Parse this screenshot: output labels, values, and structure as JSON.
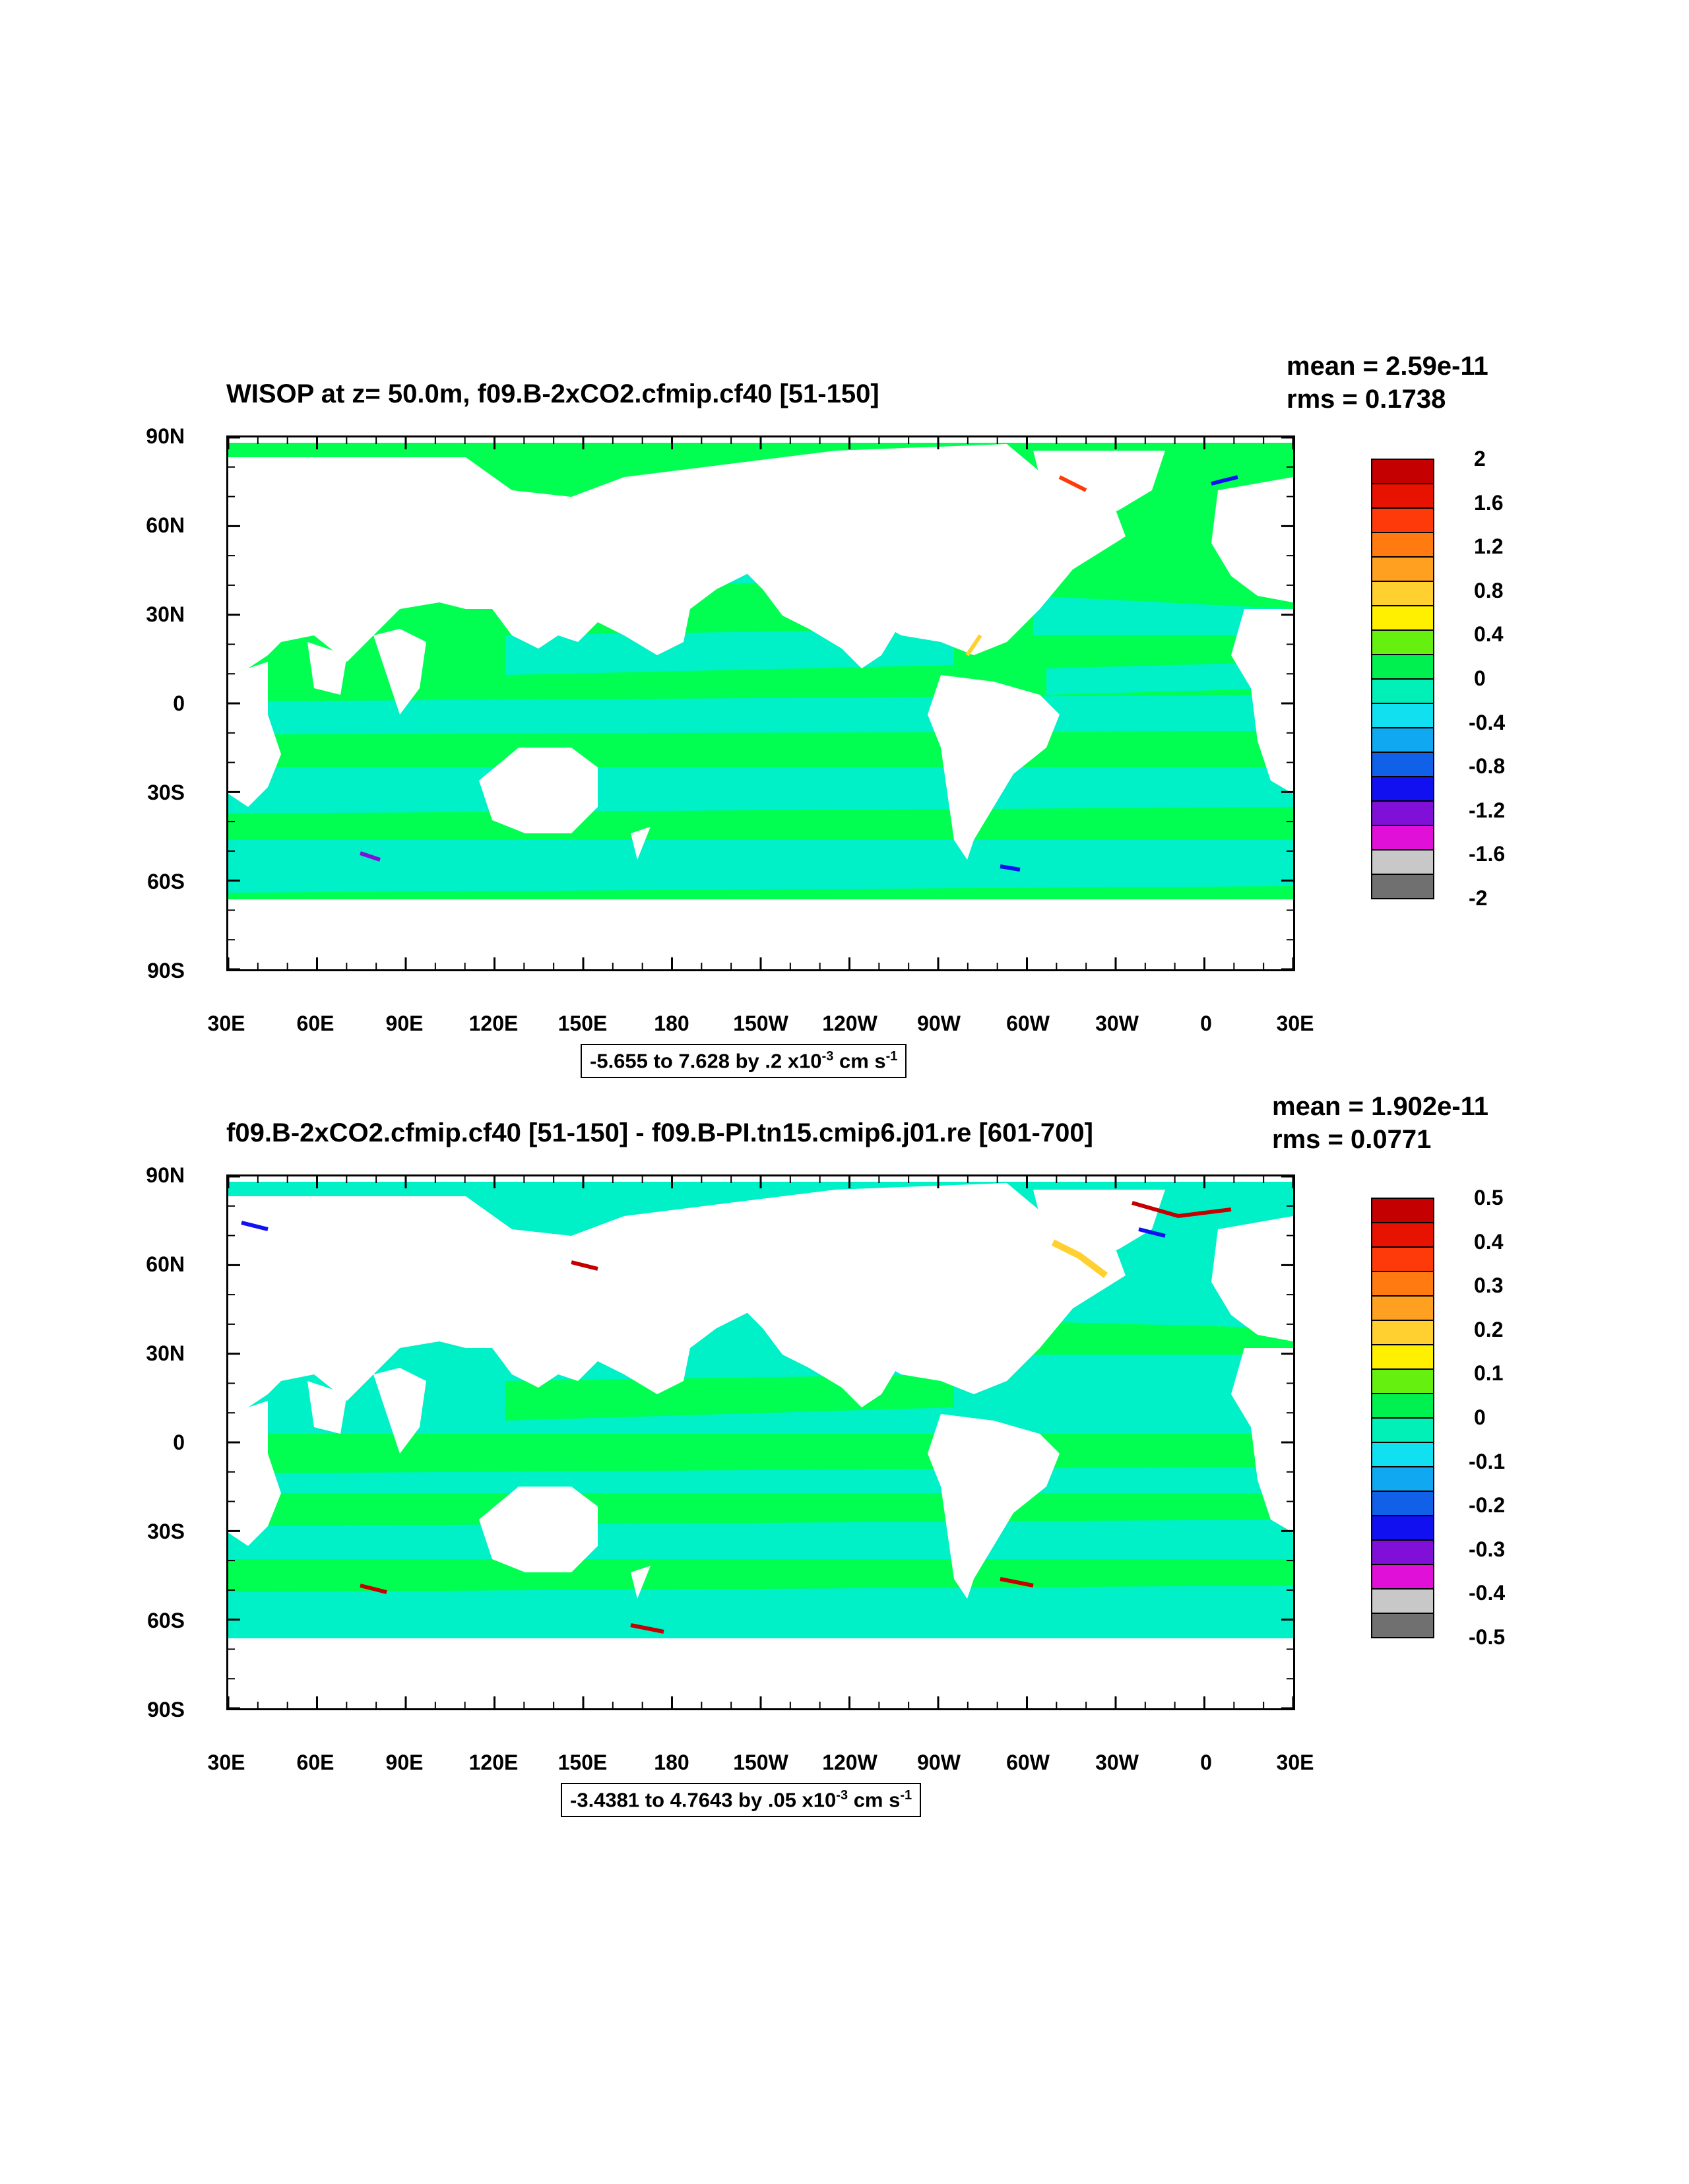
{
  "panels": [
    {
      "title": "WISOP at z=  50.0m, f09.B-2xCO2.cfmip.cf40 [51-150]",
      "mean": "mean = 2.59e-11",
      "rms": "rms = 0.1738",
      "info": {
        "range": "-5.655 to 7.628 by .2 x10",
        "exp": "-3",
        "unit": " cm s",
        "unit_exp": "-1"
      },
      "y_ticks": [
        "90N",
        "60N",
        "30N",
        "0",
        "30S",
        "60S",
        "90S"
      ],
      "x_ticks": [
        "30E",
        "60E",
        "90E",
        "120E",
        "150E",
        "180",
        "150W",
        "120W",
        "90W",
        "60W",
        "30W",
        "0",
        "30E"
      ],
      "colorbar": {
        "labels": [
          "2",
          "1.6",
          "1.2",
          "0.8",
          "0.4",
          "0",
          "-0.4",
          "-0.8",
          "-1.2",
          "-1.6",
          "-2"
        ],
        "colors": [
          "#c40000",
          "#e81200",
          "#ff3a0a",
          "#ff7a10",
          "#ffa020",
          "#ffd030",
          "#fff000",
          "#66f010",
          "#00f050",
          "#00f0b8",
          "#10e0f0",
          "#10a8f0",
          "#1060e8",
          "#1010f0",
          "#8010d8",
          "#e010d8",
          "#c8c8c8",
          "#707070"
        ]
      },
      "ocean_color": "#00ff50",
      "band_color": "#00f0c8"
    },
    {
      "title": "f09.B-2xCO2.cfmip.cf40 [51-150] - f09.B-PI.tn15.cmip6.j01.re [601-700]",
      "mean": "mean = 1.902e-11",
      "rms": "rms = 0.0771",
      "info": {
        "range": "-3.4381 to 4.7643 by .05 x10",
        "exp": "-3",
        "unit": " cm s",
        "unit_exp": "-1"
      },
      "y_ticks": [
        "90N",
        "60N",
        "30N",
        "0",
        "30S",
        "60S",
        "90S"
      ],
      "x_ticks": [
        "30E",
        "60E",
        "90E",
        "120E",
        "150E",
        "180",
        "150W",
        "120W",
        "90W",
        "60W",
        "30W",
        "0",
        "30E"
      ],
      "colorbar": {
        "labels": [
          "0.5",
          "0.4",
          "0.3",
          "0.2",
          "0.1",
          "0",
          "-0.1",
          "-0.2",
          "-0.3",
          "-0.4",
          "-0.5"
        ],
        "colors": [
          "#c40000",
          "#e81200",
          "#ff3a0a",
          "#ff7a10",
          "#ffa020",
          "#ffd030",
          "#fff000",
          "#66f010",
          "#00f050",
          "#00f0b8",
          "#10e0f0",
          "#10a8f0",
          "#1060e8",
          "#1010f0",
          "#8010d8",
          "#e010d8",
          "#c8c8c8",
          "#707070"
        ]
      },
      "ocean_color": "#00f0c8",
      "band_color": "#00ff50"
    }
  ]
}
